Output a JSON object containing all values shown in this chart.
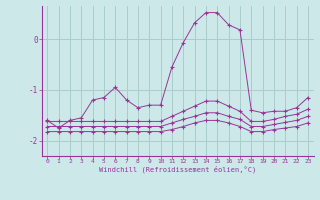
{
  "xlabel": "Windchill (Refroidissement éolien,°C)",
  "background_color": "#cce8e8",
  "grid_color": "#aacccc",
  "line_color": "#993399",
  "x_hours": [
    0,
    1,
    2,
    3,
    4,
    5,
    6,
    7,
    8,
    9,
    10,
    11,
    12,
    13,
    14,
    15,
    16,
    17,
    18,
    19,
    20,
    21,
    22,
    23
  ],
  "line1": [
    -1.6,
    -1.75,
    -1.6,
    -1.55,
    -1.2,
    -1.15,
    -0.95,
    -1.2,
    -1.35,
    -1.3,
    -1.3,
    -0.55,
    -0.07,
    0.32,
    0.52,
    0.52,
    0.28,
    0.18,
    -1.4,
    -1.45,
    -1.42,
    -1.42,
    -1.35,
    -1.15
  ],
  "line2": [
    -1.62,
    -1.62,
    -1.62,
    -1.62,
    -1.62,
    -1.62,
    -1.62,
    -1.62,
    -1.62,
    -1.62,
    -1.62,
    -1.52,
    -1.42,
    -1.32,
    -1.22,
    -1.22,
    -1.32,
    -1.42,
    -1.62,
    -1.62,
    -1.58,
    -1.52,
    -1.48,
    -1.38
  ],
  "line3": [
    -1.72,
    -1.72,
    -1.72,
    -1.72,
    -1.72,
    -1.72,
    -1.72,
    -1.72,
    -1.72,
    -1.72,
    -1.72,
    -1.65,
    -1.58,
    -1.52,
    -1.45,
    -1.45,
    -1.52,
    -1.58,
    -1.72,
    -1.72,
    -1.68,
    -1.64,
    -1.6,
    -1.52
  ],
  "line4": [
    -1.82,
    -1.82,
    -1.82,
    -1.82,
    -1.82,
    -1.82,
    -1.82,
    -1.82,
    -1.82,
    -1.82,
    -1.82,
    -1.78,
    -1.72,
    -1.65,
    -1.6,
    -1.6,
    -1.65,
    -1.72,
    -1.82,
    -1.82,
    -1.78,
    -1.75,
    -1.72,
    -1.65
  ],
  "ylim": [
    -2.3,
    0.65
  ],
  "yticks": [
    -2,
    -1,
    0
  ],
  "xlim": [
    -0.5,
    23.5
  ]
}
